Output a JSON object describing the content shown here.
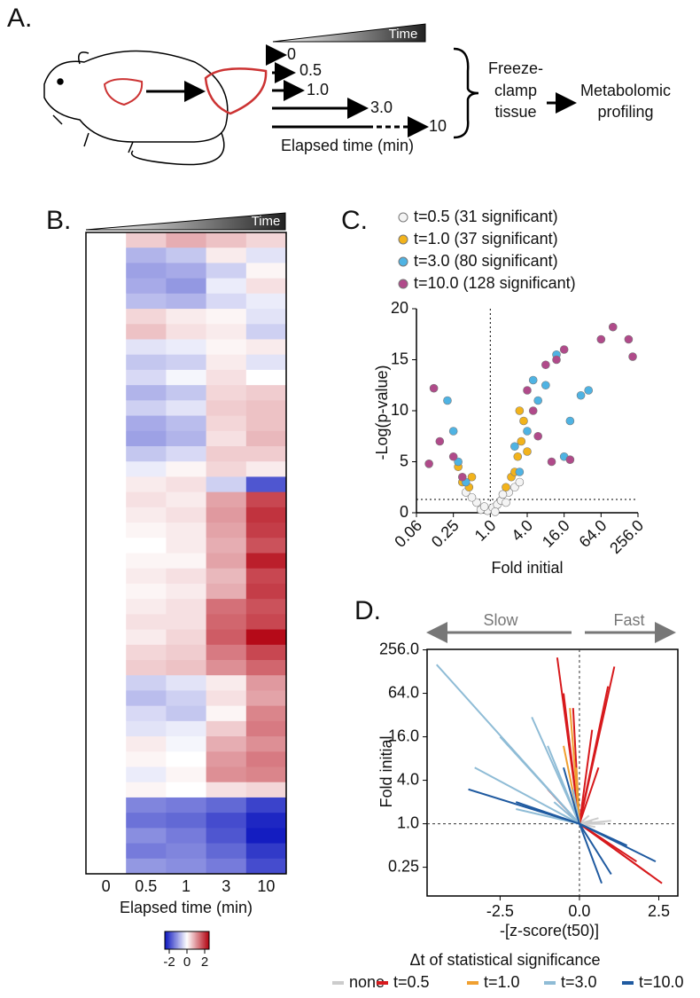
{
  "diagram": {
    "label": "A.",
    "time_label": "Time",
    "timepoints": [
      "0",
      "0.5",
      "1.0",
      "3.0",
      "10"
    ],
    "axis_label": "Elapsed time (min)",
    "step1": [
      "Freeze-",
      "clamp",
      "tissue"
    ],
    "step2": [
      "Metabolomic",
      "profiling"
    ]
  },
  "chart_data": [
    {
      "type": "heatmap",
      "label": "B.",
      "time_label": "Time",
      "categories": [
        "0",
        "0.5",
        "1",
        "3",
        "10"
      ],
      "xlabel": "Elapsed time (min)",
      "values": [
        [
          0,
          0.5,
          0.8,
          0.6,
          0.4
        ],
        [
          0,
          -0.8,
          -0.6,
          0.2,
          -0.3
        ],
        [
          0,
          -1.0,
          -0.9,
          -0.5,
          0.1
        ],
        [
          0,
          -0.9,
          -1.1,
          -0.2,
          0.3
        ],
        [
          0,
          -0.7,
          -0.8,
          -0.4,
          -0.2
        ],
        [
          0,
          0.4,
          0.2,
          0.1,
          -0.3
        ],
        [
          0,
          0.6,
          0.3,
          0.2,
          -0.5
        ],
        [
          0,
          -0.3,
          -0.2,
          0.1,
          0.2
        ],
        [
          0,
          -0.6,
          -0.5,
          0.2,
          -0.3
        ],
        [
          0,
          -0.4,
          -0.1,
          0.3,
          0.0
        ],
        [
          0,
          -0.8,
          -0.6,
          0.4,
          0.5
        ],
        [
          0,
          -0.5,
          -0.3,
          0.5,
          0.6
        ],
        [
          0,
          -0.9,
          -0.7,
          0.4,
          0.6
        ],
        [
          0,
          -1.0,
          -0.8,
          0.3,
          0.7
        ],
        [
          0,
          -0.6,
          -0.4,
          0.5,
          0.5
        ],
        [
          0,
          -0.2,
          0.1,
          0.4,
          0.2
        ],
        [
          0,
          0.2,
          0.3,
          -0.5,
          -1.8
        ],
        [
          0,
          0.3,
          0.2,
          0.9,
          1.8
        ],
        [
          0,
          0.2,
          0.3,
          1.0,
          2.0
        ],
        [
          0,
          0.1,
          0.2,
          0.9,
          1.9
        ],
        [
          0,
          0.0,
          0.2,
          0.8,
          1.7
        ],
        [
          0,
          0.1,
          0.1,
          0.9,
          2.2
        ],
        [
          0,
          0.2,
          0.3,
          0.7,
          1.8
        ],
        [
          0,
          0.1,
          0.2,
          0.8,
          1.9
        ],
        [
          0,
          0.2,
          0.3,
          1.4,
          1.7
        ],
        [
          0,
          0.3,
          0.3,
          1.5,
          1.8
        ],
        [
          0,
          0.2,
          0.4,
          1.6,
          2.4
        ],
        [
          0,
          0.4,
          0.5,
          1.3,
          1.8
        ],
        [
          0,
          0.5,
          0.6,
          1.1,
          1.5
        ],
        [
          0,
          -0.5,
          -0.3,
          0.2,
          1.0
        ],
        [
          0,
          -0.7,
          -0.5,
          0.3,
          0.9
        ],
        [
          0,
          -0.4,
          -0.6,
          0.1,
          1.2
        ],
        [
          0,
          -0.3,
          -0.2,
          0.5,
          1.3
        ],
        [
          0,
          0.2,
          -0.1,
          0.8,
          1.1
        ],
        [
          0,
          0.1,
          0.0,
          1.0,
          1.3
        ],
        [
          0,
          -0.2,
          0.1,
          1.1,
          1.2
        ],
        [
          0,
          0.1,
          0.0,
          0.3,
          0.4
        ],
        [
          0,
          -1.3,
          -1.4,
          -1.6,
          -2.0
        ],
        [
          0,
          -1.5,
          -1.6,
          -1.9,
          -2.3
        ],
        [
          0,
          -1.2,
          -1.4,
          -1.8,
          -2.4
        ],
        [
          0,
          -1.4,
          -1.3,
          -1.6,
          -2.1
        ],
        [
          0,
          -1.1,
          -1.2,
          -1.4,
          -1.9
        ]
      ],
      "colorbar": {
        "lim": [
          -2.5,
          2.5
        ],
        "ticks": [
          -2,
          0,
          2
        ]
      }
    },
    {
      "type": "scatter",
      "label": "C.",
      "ylabel": "-Log(p-value)",
      "xlabel": "Fold initial",
      "xscale": "log",
      "xlim": [
        0.0625,
        256
      ],
      "xticks": [
        {
          "value": 0.0625,
          "label": "0.06"
        },
        0.25,
        {
          "value": 1,
          "label": "1.0"
        },
        {
          "value": 4,
          "label": "4.0"
        },
        {
          "value": 16,
          "label": "16.0"
        },
        {
          "value": 64,
          "label": "64.0"
        },
        {
          "value": 256,
          "label": "256.0"
        }
      ],
      "ylim": [
        0,
        20
      ],
      "yticks": [
        0,
        5,
        10,
        15,
        20
      ],
      "hline": 1.3,
      "vline": 1,
      "series": [
        {
          "name": "t=0.5 (31 significant)",
          "color": "#f4f4f4",
          "x": [
            0.9,
            1.1,
            1.3,
            0.7,
            0.6,
            1.5,
            2.0,
            0.5,
            1.8,
            2.5,
            0.4,
            1.2,
            3.0,
            0.8,
            1.6
          ],
          "values": [
            0.2,
            0.5,
            0.8,
            0.3,
            1.0,
            1.2,
            2.0,
            1.5,
            1.0,
            2.5,
            2.0,
            0.1,
            3.0,
            0.6,
            1.8
          ]
        },
        {
          "name": "t=1.0 (37 significant)",
          "color": "#f2b31c",
          "x": [
            0.3,
            0.35,
            2.2,
            2.8,
            3.5,
            3.2,
            0.45,
            2.5,
            4.0,
            3.0,
            1.8,
            0.5
          ],
          "values": [
            4.5,
            3.0,
            3.5,
            5.5,
            9.0,
            7.0,
            2.5,
            4.0,
            6.0,
            10.0,
            2.5,
            3.5
          ]
        },
        {
          "name": "t=3.0 (80 significant)",
          "color": "#4fb3e3",
          "x": [
            0.2,
            0.25,
            0.3,
            2.5,
            4.0,
            6.0,
            8.0,
            12.0,
            20.0,
            40.0,
            30.0,
            3.0,
            5.0,
            16.0,
            0.4
          ],
          "values": [
            11.0,
            8.0,
            5.0,
            6.5,
            8.0,
            11.0,
            12.5,
            15.5,
            9.0,
            12.0,
            11.5,
            4.0,
            13.0,
            5.5,
            3.0
          ]
        },
        {
          "name": "t=10.0 (128 significant)",
          "color": "#b04a8a",
          "x": [
            0.12,
            0.1,
            0.15,
            0.25,
            0.35,
            8.0,
            12.0,
            5.0,
            6.0,
            10.0,
            16.0,
            64.0,
            100.0,
            180,
            210,
            4.0,
            20.0
          ],
          "values": [
            12.2,
            4.8,
            7.0,
            5.5,
            3.5,
            14.5,
            15.0,
            10.0,
            7.5,
            5.0,
            16.0,
            17.0,
            18.2,
            17.0,
            15.3,
            12.0,
            5.2
          ]
        }
      ]
    },
    {
      "type": "segments",
      "label": "D.",
      "arrows": [
        "Slow",
        "Fast"
      ],
      "ylabel": "Fold initial",
      "xlabel": "-[z-score(t50)]",
      "yscale": "log",
      "xlim": [
        -4.8,
        3.1
      ],
      "xticks": [
        -2.5,
        {
          "value": 0,
          "label": "0.0"
        },
        2.5
      ],
      "ylim": [
        0.1,
        260
      ],
      "yticks": [
        0.25,
        {
          "value": 1,
          "label": "1.0"
        },
        {
          "value": 4,
          "label": "4.0"
        },
        {
          "value": 16,
          "label": "16.0"
        },
        {
          "value": 64,
          "label": "64.0"
        },
        {
          "value": 256,
          "label": "256.0"
        }
      ],
      "hline": 1,
      "vline": 0,
      "legend_title": "Δt of statistical significance",
      "series": [
        {
          "name": "none",
          "color": "#cccccc",
          "x": [
            0.4,
            0.6,
            0.8,
            1.0,
            0.5,
            0.3
          ],
          "values": [
            1.1,
            1.2,
            1.0,
            1.1,
            0.9,
            1.3
          ]
        },
        {
          "name": "t=0.5",
          "color": "#d7191c",
          "x": [
            -0.7,
            -0.5,
            1.1,
            0.9,
            0.4,
            2.6,
            2.2,
            1.8,
            -0.2,
            0.6,
            -1.0
          ],
          "values": [
            200,
            64,
            150,
            80,
            20,
            0.15,
            0.2,
            0.3,
            40,
            6,
            3
          ]
        },
        {
          "name": "t=1.0",
          "color": "#f0a030",
          "x": [
            -0.3,
            -0.5,
            -0.1
          ],
          "values": [
            40,
            12,
            6
          ]
        },
        {
          "name": "t=3.0",
          "color": "#8fbcd6",
          "x": [
            -4.5,
            -3.3,
            -2.5,
            -1.5,
            -1.0,
            -0.6,
            -0.2,
            -0.8,
            -2.0
          ],
          "values": [
            160,
            6,
            16,
            30,
            12,
            4,
            3,
            2,
            1.6
          ]
        },
        {
          "name": "t=10.0",
          "color": "#1f5aa0",
          "x": [
            -3.5,
            -2.0,
            1.5,
            2.4,
            1.0,
            -0.5,
            0.7
          ],
          "values": [
            3.0,
            2.0,
            0.5,
            0.3,
            0.2,
            6,
            0.15
          ]
        }
      ]
    }
  ]
}
